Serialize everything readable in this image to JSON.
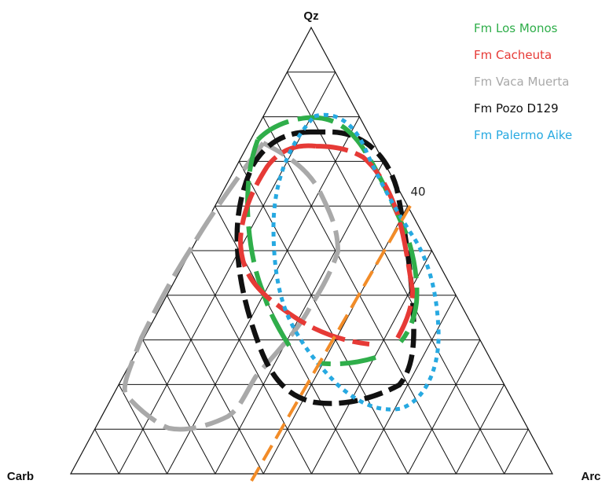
{
  "diagram": {
    "type": "ternary",
    "vertices": {
      "top": "Qz",
      "left": "Carb",
      "right": "Arc"
    },
    "grid_divisions": 10,
    "tick_labels": [
      "40"
    ],
    "reference_line": {
      "color": "#f28c28",
      "style": "long-dash"
    }
  },
  "legend": [
    {
      "label": "Fm Los Monos",
      "color": "#2fae4a"
    },
    {
      "label": "Fm Cacheuta",
      "color": "#e63a36"
    },
    {
      "label": "Fm Vaca Muerta",
      "color": "#a9a9a9"
    },
    {
      "label": "Fm Pozo D129",
      "color": "#111111"
    },
    {
      "label": "Fm Palermo Aike",
      "color": "#27a9e1"
    }
  ]
}
